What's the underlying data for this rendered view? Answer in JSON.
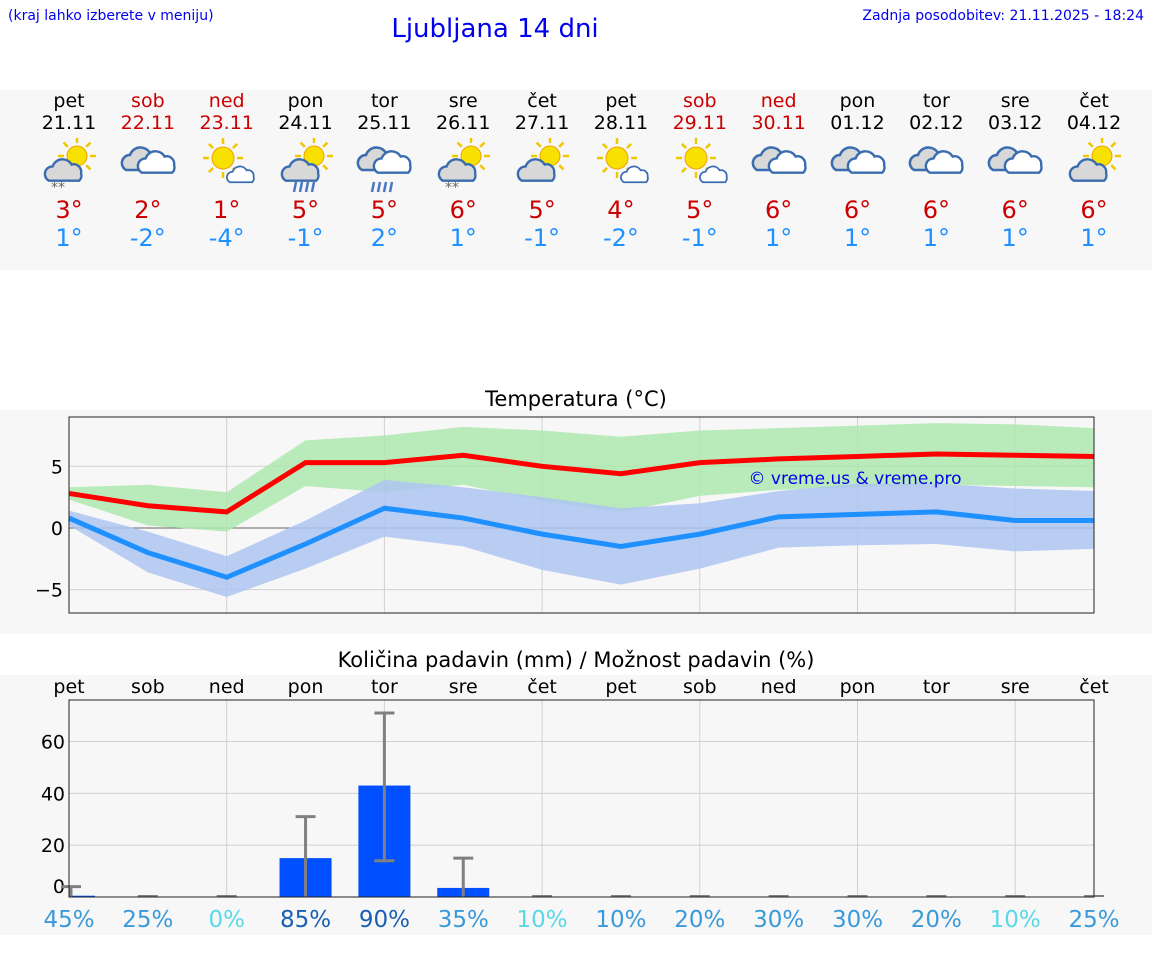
{
  "header": {
    "hint": "(kraj lahko izberete v meniju)",
    "title": "Ljubljana 14 dni",
    "updated": "Zadnja posodobitev: 21.11.2025 - 18:24"
  },
  "days": [
    {
      "name": "pet",
      "date": "21.11",
      "weekend": false,
      "icon": "sun-cloud-snow",
      "max": "3°",
      "min": "1°"
    },
    {
      "name": "sob",
      "date": "22.11",
      "weekend": true,
      "icon": "cloudy",
      "max": "2°",
      "min": "-2°"
    },
    {
      "name": "ned",
      "date": "23.11",
      "weekend": true,
      "icon": "sun-small-cloud",
      "max": "1°",
      "min": "-4°"
    },
    {
      "name": "pon",
      "date": "24.11",
      "weekend": false,
      "icon": "sun-cloud-rain",
      "max": "5°",
      "min": "-1°"
    },
    {
      "name": "tor",
      "date": "25.11",
      "weekend": false,
      "icon": "cloudy-rain",
      "max": "5°",
      "min": "2°"
    },
    {
      "name": "sre",
      "date": "26.11",
      "weekend": false,
      "icon": "sun-cloud-snow",
      "max": "6°",
      "min": "1°"
    },
    {
      "name": "čet",
      "date": "27.11",
      "weekend": false,
      "icon": "sun-cloud",
      "max": "5°",
      "min": "-1°"
    },
    {
      "name": "pet",
      "date": "28.11",
      "weekend": false,
      "icon": "sun-small-cloud",
      "max": "4°",
      "min": "-2°"
    },
    {
      "name": "sob",
      "date": "29.11",
      "weekend": true,
      "icon": "sun-small-cloud",
      "max": "5°",
      "min": "-1°"
    },
    {
      "name": "ned",
      "date": "30.11",
      "weekend": true,
      "icon": "cloudy",
      "max": "6°",
      "min": "1°"
    },
    {
      "name": "pon",
      "date": "01.12",
      "weekend": false,
      "icon": "cloudy",
      "max": "6°",
      "min": "1°"
    },
    {
      "name": "tor",
      "date": "02.12",
      "weekend": false,
      "icon": "cloudy",
      "max": "6°",
      "min": "1°"
    },
    {
      "name": "sre",
      "date": "03.12",
      "weekend": false,
      "icon": "cloudy",
      "max": "6°",
      "min": "1°"
    },
    {
      "name": "čet",
      "date": "04.12",
      "weekend": false,
      "icon": "sun-cloud",
      "max": "6°",
      "min": "1°"
    }
  ],
  "colors": {
    "max": "#ff0000",
    "min": "#1e90ff",
    "max_band": "#aee8ae",
    "min_band": "#aec6f2",
    "bar": "#0050ff",
    "err": "#808080",
    "weekend": "#cc0000"
  },
  "chart_data": [
    {
      "type": "line",
      "title": "Temperatura (°C)",
      "ylim": [
        -6.9,
        9
      ],
      "yticks": [
        5,
        0,
        -5
      ],
      "ytick_labels": [
        "5",
        "0",
        "−5"
      ],
      "grid": true,
      "watermark": "© vreme.us & vreme.pro",
      "series": [
        {
          "role": "max",
          "values": [
            2.8,
            1.8,
            1.3,
            5.3,
            5.3,
            5.9,
            5.0,
            4.4,
            5.3,
            5.6,
            5.8,
            6.0,
            5.9,
            5.8
          ]
        },
        {
          "role": "min",
          "values": [
            0.8,
            -2.0,
            -4.0,
            -1.3,
            1.6,
            0.8,
            -0.5,
            -1.5,
            -0.5,
            0.9,
            1.1,
            1.3,
            0.6,
            0.6
          ]
        }
      ],
      "bands": [
        {
          "role": "max_range",
          "upper": [
            3.3,
            3.5,
            2.9,
            7.1,
            7.5,
            8.2,
            7.9,
            7.4,
            7.9,
            8.1,
            8.3,
            8.5,
            8.4,
            8.1
          ],
          "lower": [
            2.3,
            0.2,
            -0.3,
            3.4,
            2.9,
            3.5,
            2.2,
            1.3,
            2.6,
            3.1,
            3.3,
            3.5,
            3.4,
            3.3
          ]
        },
        {
          "role": "min_range",
          "upper": [
            1.4,
            -0.3,
            -2.3,
            0.6,
            3.9,
            3.3,
            2.5,
            1.6,
            2.0,
            3.0,
            3.6,
            3.6,
            3.2,
            3.0
          ],
          "lower": [
            0.2,
            -3.6,
            -5.6,
            -3.3,
            -0.7,
            -1.5,
            -3.4,
            -4.6,
            -3.3,
            -1.6,
            -1.4,
            -1.3,
            -1.9,
            -1.7
          ]
        }
      ]
    },
    {
      "type": "bar",
      "title": "Količina padavin (mm) / Možnost padavin (%)",
      "ylim": [
        0,
        76
      ],
      "yticks": [
        60,
        40,
        20,
        0
      ],
      "ytick_labels": [
        "60",
        "40",
        "20",
        "0"
      ],
      "grid": true,
      "categories": [
        "pet",
        "sob",
        "ned",
        "pon",
        "tor",
        "sre",
        "čet",
        "pet",
        "sob",
        "ned",
        "pon",
        "tor",
        "sre",
        "čet"
      ],
      "values": [
        0.5,
        0,
        0,
        15,
        43,
        3.5,
        0,
        0,
        0,
        0,
        0,
        0,
        0,
        0
      ],
      "err_low": [
        0,
        0,
        0,
        0,
        14,
        0,
        0,
        0,
        0,
        0,
        0,
        0,
        0,
        0
      ],
      "err_high": [
        4,
        0,
        0,
        31,
        71,
        15,
        0,
        0,
        0,
        0,
        0,
        0,
        0,
        0
      ],
      "probability": [
        "45%",
        "25%",
        "0%",
        "85%",
        "90%",
        "35%",
        "10%",
        "10%",
        "20%",
        "30%",
        "30%",
        "20%",
        "10%",
        "25%"
      ],
      "probability_colors": [
        "#3a9ad9",
        "#3a9ad9",
        "#5ad8e8",
        "#1a5fb4",
        "#1a5fb4",
        "#3a9ad9",
        "#5ad8e8",
        "#3a9ad9",
        "#3a9ad9",
        "#3a9ad9",
        "#3a9ad9",
        "#3a9ad9",
        "#5ad8e8",
        "#3a9ad9"
      ]
    }
  ]
}
